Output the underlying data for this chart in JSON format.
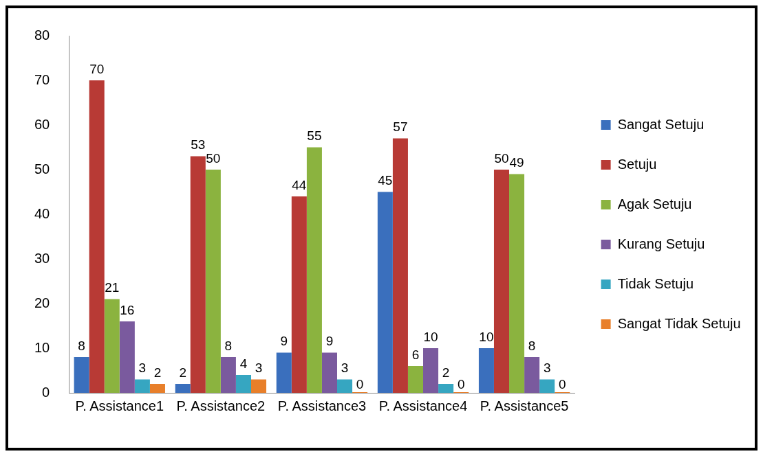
{
  "chart_data": {
    "type": "bar",
    "categories": [
      "P. Assistance1",
      "P. Assistance2",
      "P. Assistance3",
      "P. Assistance4",
      "P. Assistance5"
    ],
    "series": [
      {
        "name": "Sangat Setuju",
        "color": "#3a6fbd",
        "values": [
          8,
          2,
          9,
          45,
          10
        ]
      },
      {
        "name": "Setuju",
        "color": "#b83a35",
        "values": [
          70,
          53,
          44,
          57,
          50
        ]
      },
      {
        "name": "Agak Setuju",
        "color": "#8bb33f",
        "values": [
          21,
          50,
          55,
          6,
          49
        ]
      },
      {
        "name": "Kurang Setuju",
        "color": "#7a5a9e",
        "values": [
          16,
          8,
          9,
          10,
          8
        ]
      },
      {
        "name": "Tidak Setuju",
        "color": "#36a6c1",
        "values": [
          3,
          4,
          3,
          2,
          3
        ]
      },
      {
        "name": "Sangat Tidak Setuju",
        "color": "#e87f2a",
        "values": [
          2,
          3,
          0,
          0,
          0
        ]
      }
    ],
    "ylim": [
      0,
      80
    ],
    "yticks": [
      0,
      10,
      20,
      30,
      40,
      50,
      60,
      70,
      80
    ],
    "grid": false,
    "legend": "right",
    "data_labels": true
  }
}
